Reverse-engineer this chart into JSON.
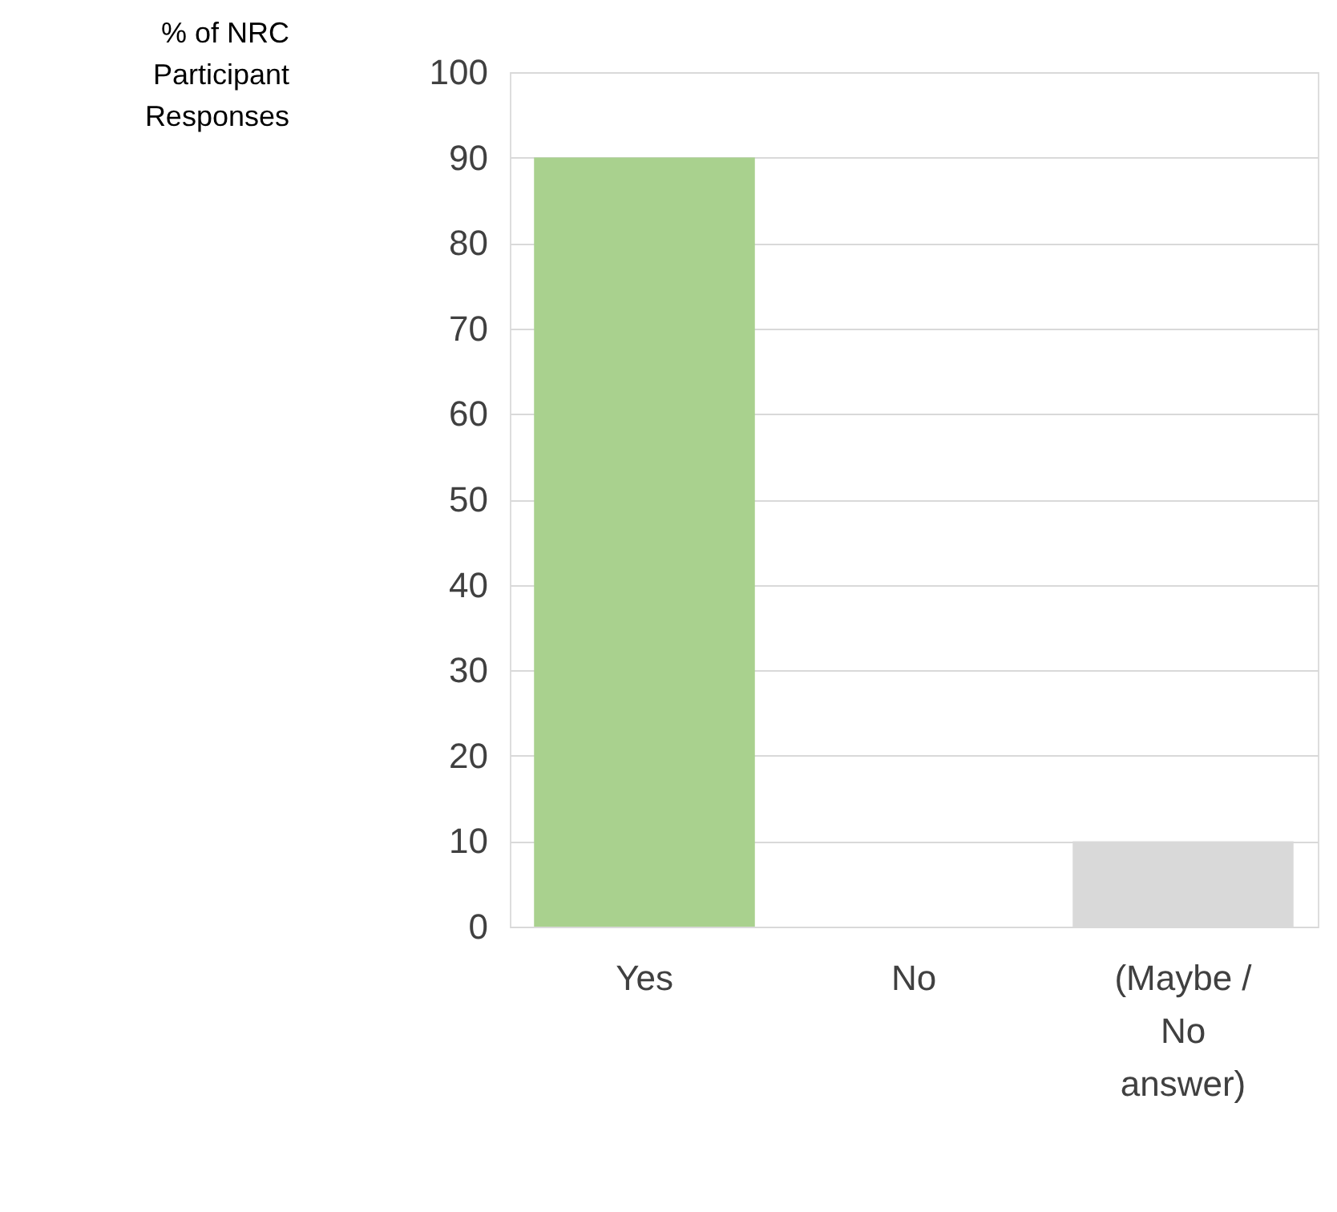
{
  "chart_data": {
    "type": "bar",
    "ylabel": "% of NRC Participant Responses",
    "categories": [
      "Yes",
      "No",
      "(Maybe / No answer)"
    ],
    "values": [
      90,
      0,
      10
    ],
    "colors": [
      "#a9d18e",
      "#d9d9d9",
      "#d9d9d9"
    ],
    "ylim": [
      0,
      100
    ],
    "yticks": [
      0,
      10,
      20,
      30,
      40,
      50,
      60,
      70,
      80,
      90,
      100
    ],
    "grid": "y"
  }
}
